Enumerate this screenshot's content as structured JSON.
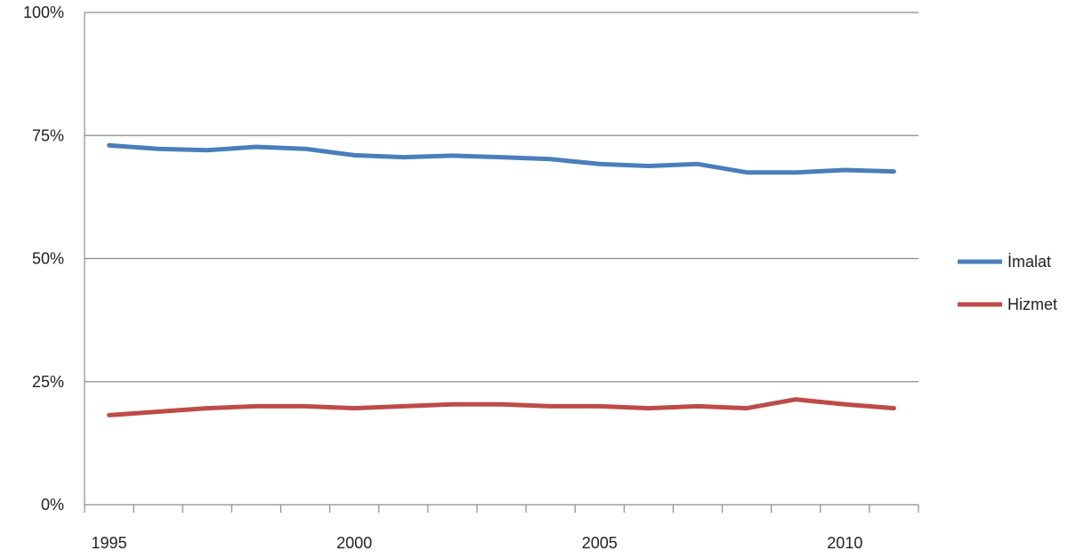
{
  "chart_data": {
    "type": "line",
    "x": [
      1995,
      1996,
      1997,
      1998,
      1999,
      2000,
      2001,
      2002,
      2003,
      2004,
      2005,
      2006,
      2007,
      2008,
      2009,
      2010,
      2011
    ],
    "series": [
      {
        "name": "İmalat",
        "color": "#4a7ebb",
        "values": [
          73.0,
          72.3,
          72.0,
          72.7,
          72.3,
          71.0,
          70.6,
          70.9,
          70.6,
          70.2,
          69.2,
          68.8,
          69.2,
          67.5,
          67.5,
          68.0,
          67.7
        ]
      },
      {
        "name": "Hizmet",
        "color": "#be4b48",
        "values": [
          18.2,
          18.9,
          19.6,
          20.0,
          20.0,
          19.6,
          20.0,
          20.4,
          20.4,
          20.0,
          20.0,
          19.6,
          20.0,
          19.6,
          21.4,
          20.4,
          19.6
        ]
      }
    ],
    "y_ticks": [
      "0%",
      "25%",
      "50%",
      "75%",
      "100%"
    ],
    "y_tick_values": [
      0,
      25,
      50,
      75,
      100
    ],
    "x_tick_labels": [
      "1995",
      "2000",
      "2005",
      "2010"
    ],
    "x_tick_values": [
      1995,
      2000,
      2005,
      2010
    ],
    "xlim": [
      1994.5,
      2011.5
    ],
    "ylim": [
      0,
      100
    ],
    "grid": "horizontal",
    "legend_position": "right",
    "title": "",
    "xlabel": "",
    "ylabel": ""
  }
}
